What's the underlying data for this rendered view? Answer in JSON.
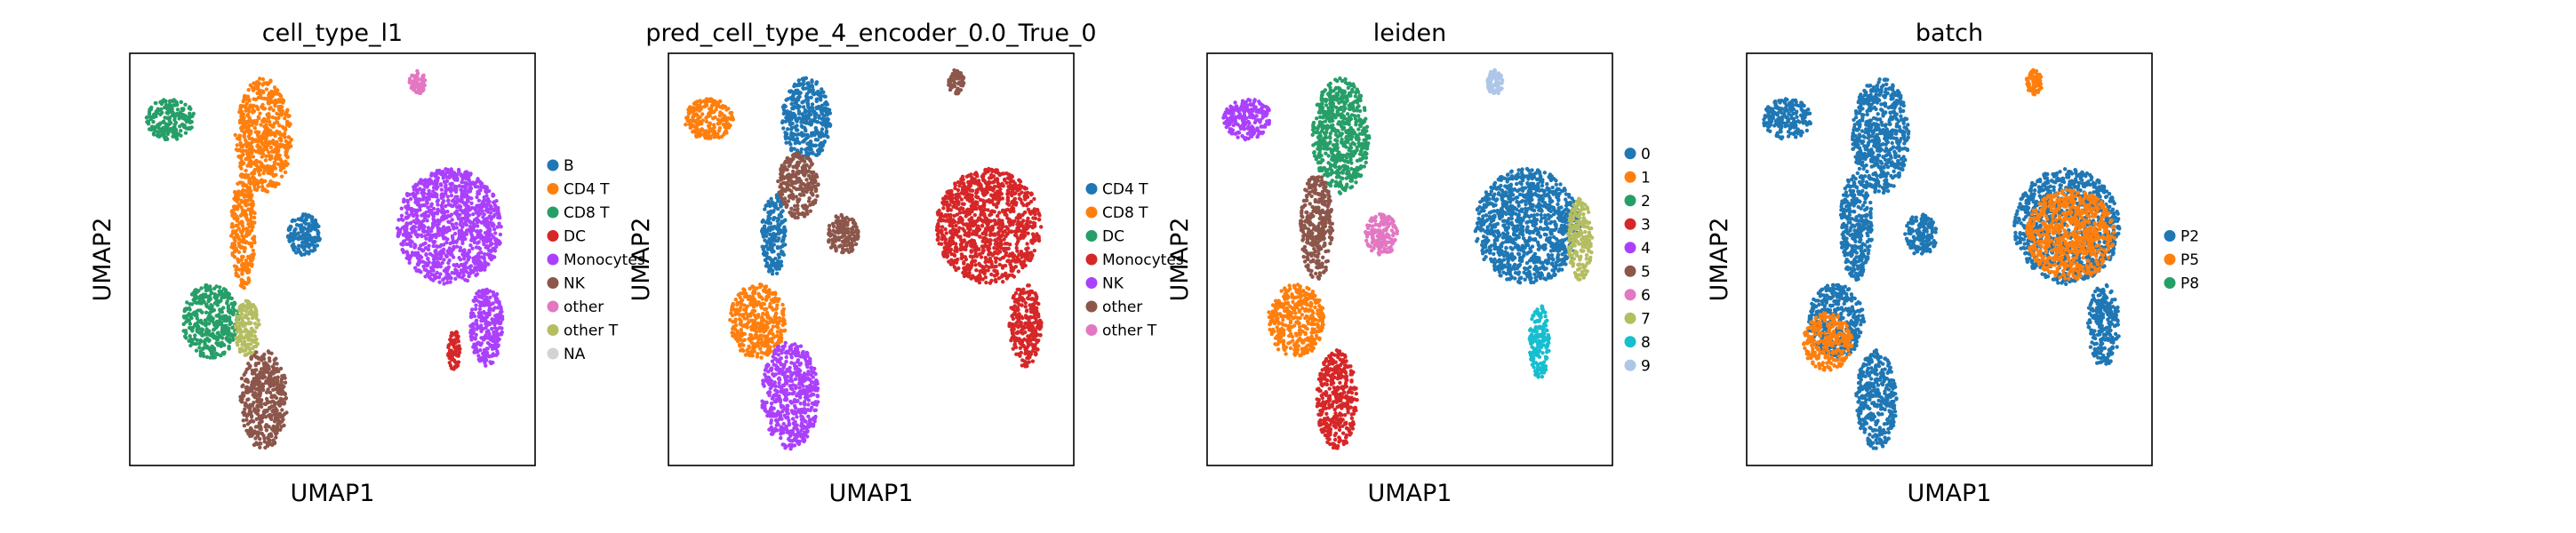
{
  "chart_data": [
    {
      "type": "scatter",
      "title": "cell_type_l1",
      "xlabel": "UMAP1",
      "ylabel": "UMAP2",
      "grid": false,
      "legend_position": "right",
      "series": [
        {
          "name": "B",
          "color": "#1f77b4"
        },
        {
          "name": "CD4 T",
          "color": "#ff7f0e"
        },
        {
          "name": "CD8 T",
          "color": "#279e68"
        },
        {
          "name": "DC",
          "color": "#d62728"
        },
        {
          "name": "Monocytes",
          "color": "#aa40fc"
        },
        {
          "name": "NK",
          "color": "#8c564b"
        },
        {
          "name": "other",
          "color": "#e377c2"
        },
        {
          "name": "other T",
          "color": "#b5bd61"
        },
        {
          "name": "NA",
          "color": "#d3d3d3"
        }
      ],
      "clusters": [
        {
          "series": "CD8 T",
          "x": 0.1,
          "y": 0.84,
          "rx": 0.06,
          "ry": 0.05
        },
        {
          "series": "CD4 T",
          "x": 0.33,
          "y": 0.8,
          "rx": 0.07,
          "ry": 0.14
        },
        {
          "series": "CD4 T",
          "x": 0.28,
          "y": 0.57,
          "rx": 0.03,
          "ry": 0.14
        },
        {
          "series": "B",
          "x": 0.43,
          "y": 0.56,
          "rx": 0.04,
          "ry": 0.05
        },
        {
          "series": "other",
          "x": 0.71,
          "y": 0.93,
          "rx": 0.02,
          "ry": 0.03
        },
        {
          "series": "Monocytes",
          "x": 0.79,
          "y": 0.58,
          "rx": 0.13,
          "ry": 0.14
        },
        {
          "series": "Monocytes",
          "x": 0.88,
          "y": 0.34,
          "rx": 0.04,
          "ry": 0.1
        },
        {
          "series": "DC",
          "x": 0.8,
          "y": 0.28,
          "rx": 0.015,
          "ry": 0.05
        },
        {
          "series": "CD8 T",
          "x": 0.2,
          "y": 0.35,
          "rx": 0.07,
          "ry": 0.09
        },
        {
          "series": "other T",
          "x": 0.29,
          "y": 0.33,
          "rx": 0.03,
          "ry": 0.07
        },
        {
          "series": "NK",
          "x": 0.33,
          "y": 0.16,
          "rx": 0.06,
          "ry": 0.12
        }
      ]
    },
    {
      "type": "scatter",
      "title": "pred_cell_type_4_encoder_0.0_True_0",
      "xlabel": "UMAP1",
      "ylabel": "UMAP2",
      "grid": false,
      "legend_position": "right",
      "series": [
        {
          "name": "CD4 T",
          "color": "#1f77b4"
        },
        {
          "name": "CD8 T",
          "color": "#ff7f0e"
        },
        {
          "name": "DC",
          "color": "#279e68"
        },
        {
          "name": "Monocytes",
          "color": "#d62728"
        },
        {
          "name": "NK",
          "color": "#aa40fc"
        },
        {
          "name": "other",
          "color": "#8c564b"
        },
        {
          "name": "other T",
          "color": "#e377c2"
        }
      ],
      "clusters": [
        {
          "series": "CD8 T",
          "x": 0.1,
          "y": 0.84,
          "rx": 0.06,
          "ry": 0.05
        },
        {
          "series": "CD4 T",
          "x": 0.34,
          "y": 0.84,
          "rx": 0.06,
          "ry": 0.1
        },
        {
          "series": "other",
          "x": 0.32,
          "y": 0.68,
          "rx": 0.05,
          "ry": 0.08
        },
        {
          "series": "CD4 T",
          "x": 0.26,
          "y": 0.56,
          "rx": 0.03,
          "ry": 0.1
        },
        {
          "series": "other",
          "x": 0.43,
          "y": 0.56,
          "rx": 0.04,
          "ry": 0.05
        },
        {
          "series": "other",
          "x": 0.71,
          "y": 0.93,
          "rx": 0.02,
          "ry": 0.03
        },
        {
          "series": "Monocytes",
          "x": 0.79,
          "y": 0.58,
          "rx": 0.13,
          "ry": 0.14
        },
        {
          "series": "Monocytes",
          "x": 0.88,
          "y": 0.34,
          "rx": 0.04,
          "ry": 0.1
        },
        {
          "series": "CD8 T",
          "x": 0.22,
          "y": 0.35,
          "rx": 0.07,
          "ry": 0.09
        },
        {
          "series": "NK",
          "x": 0.3,
          "y": 0.17,
          "rx": 0.07,
          "ry": 0.13
        }
      ]
    },
    {
      "type": "scatter",
      "title": "leiden",
      "xlabel": "UMAP1",
      "ylabel": "UMAP2",
      "grid": false,
      "legend_position": "right",
      "series": [
        {
          "name": "0",
          "color": "#1f77b4"
        },
        {
          "name": "1",
          "color": "#ff7f0e"
        },
        {
          "name": "2",
          "color": "#279e68"
        },
        {
          "name": "3",
          "color": "#d62728"
        },
        {
          "name": "4",
          "color": "#aa40fc"
        },
        {
          "name": "5",
          "color": "#8c564b"
        },
        {
          "name": "6",
          "color": "#e377c2"
        },
        {
          "name": "7",
          "color": "#b5bd61"
        },
        {
          "name": "8",
          "color": "#17becf"
        },
        {
          "name": "9",
          "color": "#aec7e8"
        }
      ],
      "clusters": [
        {
          "series": "4",
          "x": 0.1,
          "y": 0.84,
          "rx": 0.06,
          "ry": 0.05
        },
        {
          "series": "2",
          "x": 0.33,
          "y": 0.8,
          "rx": 0.07,
          "ry": 0.14
        },
        {
          "series": "5",
          "x": 0.27,
          "y": 0.58,
          "rx": 0.04,
          "ry": 0.13
        },
        {
          "series": "6",
          "x": 0.43,
          "y": 0.56,
          "rx": 0.04,
          "ry": 0.05
        },
        {
          "series": "9",
          "x": 0.71,
          "y": 0.93,
          "rx": 0.02,
          "ry": 0.03
        },
        {
          "series": "0",
          "x": 0.79,
          "y": 0.58,
          "rx": 0.13,
          "ry": 0.14
        },
        {
          "series": "7",
          "x": 0.92,
          "y": 0.55,
          "rx": 0.03,
          "ry": 0.1
        },
        {
          "series": "8",
          "x": 0.82,
          "y": 0.3,
          "rx": 0.025,
          "ry": 0.09
        },
        {
          "series": "1",
          "x": 0.22,
          "y": 0.35,
          "rx": 0.07,
          "ry": 0.09
        },
        {
          "series": "3",
          "x": 0.32,
          "y": 0.16,
          "rx": 0.05,
          "ry": 0.12
        }
      ]
    },
    {
      "type": "scatter",
      "title": "batch",
      "xlabel": "UMAP1",
      "ylabel": "UMAP2",
      "grid": false,
      "legend_position": "right",
      "series": [
        {
          "name": "P2",
          "color": "#1f77b4"
        },
        {
          "name": "P5",
          "color": "#ff7f0e"
        },
        {
          "name": "P8",
          "color": "#279e68"
        }
      ],
      "clusters": [
        {
          "series": "P2",
          "x": 0.1,
          "y": 0.84,
          "rx": 0.06,
          "ry": 0.05
        },
        {
          "series": "P2",
          "x": 0.33,
          "y": 0.8,
          "rx": 0.07,
          "ry": 0.14
        },
        {
          "series": "P2",
          "x": 0.27,
          "y": 0.58,
          "rx": 0.04,
          "ry": 0.13
        },
        {
          "series": "P2",
          "x": 0.43,
          "y": 0.56,
          "rx": 0.04,
          "ry": 0.05
        },
        {
          "series": "P5",
          "x": 0.71,
          "y": 0.93,
          "rx": 0.02,
          "ry": 0.03
        },
        {
          "series": "P2",
          "x": 0.79,
          "y": 0.58,
          "rx": 0.13,
          "ry": 0.14
        },
        {
          "series": "P5",
          "x": 0.8,
          "y": 0.56,
          "rx": 0.11,
          "ry": 0.11
        },
        {
          "series": "P2",
          "x": 0.88,
          "y": 0.34,
          "rx": 0.04,
          "ry": 0.1
        },
        {
          "series": "P2",
          "x": 0.22,
          "y": 0.35,
          "rx": 0.07,
          "ry": 0.09
        },
        {
          "series": "P5",
          "x": 0.2,
          "y": 0.3,
          "rx": 0.06,
          "ry": 0.07
        },
        {
          "series": "P2",
          "x": 0.32,
          "y": 0.16,
          "rx": 0.05,
          "ry": 0.12
        }
      ]
    }
  ]
}
